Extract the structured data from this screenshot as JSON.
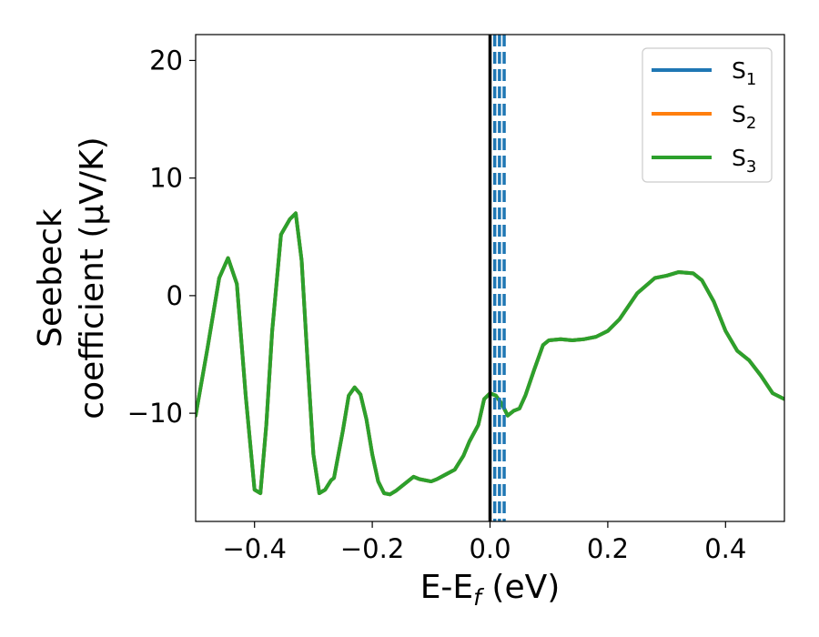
{
  "chart_data": {
    "type": "line",
    "xlabel": "E-E_f (eV)",
    "xlabel_parts": {
      "main": "E-E",
      "sub": "f",
      "suffix": " (eV)"
    },
    "ylabel_lines": [
      "Seebeck",
      "coefficient  (μV/K)"
    ],
    "xlim": [
      -0.5,
      0.5
    ],
    "ylim": [
      -19.2,
      22.2
    ],
    "xticks": [
      -0.4,
      -0.2,
      0.0,
      0.2,
      0.4
    ],
    "xtick_labels": [
      "−0.4",
      "−0.2",
      "0.0",
      "0.2",
      "0.4"
    ],
    "yticks": [
      -10,
      0,
      10,
      20
    ],
    "ytick_labels": [
      "−10",
      "0",
      "10",
      "20"
    ],
    "legend_position": "top-right",
    "grid": false,
    "vertical_lines": [
      {
        "x": 0.0,
        "color": "#000000",
        "style": "solid"
      },
      {
        "x": 0.008,
        "color": "#1f77b4",
        "style": "dashed"
      },
      {
        "x": 0.016,
        "color": "#1f77b4",
        "style": "dashed"
      },
      {
        "x": 0.024,
        "color": "#1f77b4",
        "style": "dashed"
      }
    ],
    "series": [
      {
        "name": "S1",
        "label_main": "S",
        "label_sub": "1",
        "color": "#1f77b4",
        "x": [
          -0.5,
          -0.48,
          -0.46,
          -0.445,
          -0.43,
          -0.415,
          -0.4,
          -0.39,
          -0.38,
          -0.37,
          -0.355,
          -0.34,
          -0.33,
          -0.32,
          -0.31,
          -0.3,
          -0.29,
          -0.28,
          -0.27,
          -0.265,
          -0.25,
          -0.24,
          -0.23,
          -0.22,
          -0.21,
          -0.2,
          -0.19,
          -0.18,
          -0.17,
          -0.16,
          -0.145,
          -0.13,
          -0.12,
          -0.1,
          -0.09,
          -0.075,
          -0.06,
          -0.045,
          -0.035,
          -0.02,
          -0.01,
          0.0,
          0.01,
          0.02,
          0.03,
          0.04,
          0.05,
          0.06,
          0.075,
          0.09,
          0.1,
          0.12,
          0.14,
          0.16,
          0.18,
          0.2,
          0.22,
          0.25,
          0.28,
          0.3,
          0.32,
          0.345,
          0.36,
          0.38,
          0.4,
          0.42,
          0.44,
          0.46,
          0.48,
          0.5
        ],
        "y": [
          -10.2,
          -4.5,
          1.5,
          3.2,
          1.0,
          -8.5,
          -16.5,
          -16.8,
          -11,
          -3,
          5.2,
          6.5,
          7.0,
          3.0,
          -5.5,
          -13.5,
          -16.8,
          -16.5,
          -15.7,
          -15.5,
          -11.5,
          -8.5,
          -7.8,
          -8.4,
          -10.5,
          -13.5,
          -15.8,
          -16.8,
          -16.9,
          -16.6,
          -16.0,
          -15.4,
          -15.6,
          -15.8,
          -15.6,
          -15.2,
          -14.8,
          -13.6,
          -12.4,
          -11.0,
          -8.8,
          -8.3,
          -8.5,
          -9.2,
          -10.2,
          -9.8,
          -9.6,
          -8.5,
          -6.3,
          -4.2,
          -3.8,
          -3.7,
          -3.8,
          -3.7,
          -3.5,
          -3.0,
          -2.0,
          0.2,
          1.5,
          1.7,
          2.0,
          1.9,
          1.3,
          -0.5,
          -3.0,
          -4.7,
          -5.5,
          -6.8,
          -8.3,
          -8.8
        ]
      },
      {
        "name": "S2",
        "label_main": "S",
        "label_sub": "2",
        "color": "#ff7f0e",
        "x": [
          -0.5,
          -0.48,
          -0.46,
          -0.445,
          -0.43,
          -0.415,
          -0.4,
          -0.39,
          -0.38,
          -0.37,
          -0.355,
          -0.34,
          -0.33,
          -0.32,
          -0.31,
          -0.3,
          -0.29,
          -0.28,
          -0.27,
          -0.265,
          -0.25,
          -0.24,
          -0.23,
          -0.22,
          -0.21,
          -0.2,
          -0.19,
          -0.18,
          -0.17,
          -0.16,
          -0.145,
          -0.13,
          -0.12,
          -0.1,
          -0.09,
          -0.075,
          -0.06,
          -0.045,
          -0.035,
          -0.02,
          -0.01,
          0.0,
          0.01,
          0.02,
          0.03,
          0.04,
          0.05,
          0.06,
          0.075,
          0.09,
          0.1,
          0.12,
          0.14,
          0.16,
          0.18,
          0.2,
          0.22,
          0.25,
          0.28,
          0.3,
          0.32,
          0.345,
          0.36,
          0.38,
          0.4,
          0.42,
          0.44,
          0.46,
          0.48,
          0.5
        ],
        "y": [
          -10.2,
          -4.5,
          1.5,
          3.2,
          1.0,
          -8.5,
          -16.5,
          -16.8,
          -11,
          -3,
          5.2,
          6.5,
          7.0,
          3.0,
          -5.5,
          -13.5,
          -16.8,
          -16.5,
          -15.7,
          -15.5,
          -11.5,
          -8.5,
          -7.8,
          -8.4,
          -10.5,
          -13.5,
          -15.8,
          -16.8,
          -16.9,
          -16.6,
          -16.0,
          -15.4,
          -15.6,
          -15.8,
          -15.6,
          -15.2,
          -14.8,
          -13.6,
          -12.4,
          -11.0,
          -8.8,
          -8.3,
          -8.5,
          -9.2,
          -10.2,
          -9.8,
          -9.6,
          -8.5,
          -6.3,
          -4.2,
          -3.8,
          -3.7,
          -3.8,
          -3.7,
          -3.5,
          -3.0,
          -2.0,
          0.2,
          1.5,
          1.7,
          2.0,
          1.9,
          1.3,
          -0.5,
          -3.0,
          -4.7,
          -5.5,
          -6.8,
          -8.3,
          -8.8
        ]
      },
      {
        "name": "S3",
        "label_main": "S",
        "label_sub": "3",
        "color": "#2ca02c",
        "x": [
          -0.5,
          -0.48,
          -0.46,
          -0.445,
          -0.43,
          -0.415,
          -0.4,
          -0.39,
          -0.38,
          -0.37,
          -0.355,
          -0.34,
          -0.33,
          -0.32,
          -0.31,
          -0.3,
          -0.29,
          -0.28,
          -0.27,
          -0.265,
          -0.25,
          -0.24,
          -0.23,
          -0.22,
          -0.21,
          -0.2,
          -0.19,
          -0.18,
          -0.17,
          -0.16,
          -0.145,
          -0.13,
          -0.12,
          -0.1,
          -0.09,
          -0.075,
          -0.06,
          -0.045,
          -0.035,
          -0.02,
          -0.01,
          0.0,
          0.01,
          0.02,
          0.03,
          0.04,
          0.05,
          0.06,
          0.075,
          0.09,
          0.1,
          0.12,
          0.14,
          0.16,
          0.18,
          0.2,
          0.22,
          0.25,
          0.28,
          0.3,
          0.32,
          0.345,
          0.36,
          0.38,
          0.4,
          0.42,
          0.44,
          0.46,
          0.48,
          0.5
        ],
        "y": [
          -10.2,
          -4.5,
          1.5,
          3.2,
          1.0,
          -8.5,
          -16.5,
          -16.8,
          -11,
          -3,
          5.2,
          6.5,
          7.0,
          3.0,
          -5.5,
          -13.5,
          -16.8,
          -16.5,
          -15.7,
          -15.5,
          -11.5,
          -8.5,
          -7.8,
          -8.4,
          -10.5,
          -13.5,
          -15.8,
          -16.8,
          -16.9,
          -16.6,
          -16.0,
          -15.4,
          -15.6,
          -15.8,
          -15.6,
          -15.2,
          -14.8,
          -13.6,
          -12.4,
          -11.0,
          -8.8,
          -8.3,
          -8.5,
          -9.2,
          -10.2,
          -9.8,
          -9.6,
          -8.5,
          -6.3,
          -4.2,
          -3.8,
          -3.7,
          -3.8,
          -3.7,
          -3.5,
          -3.0,
          -2.0,
          0.2,
          1.5,
          1.7,
          2.0,
          1.9,
          1.3,
          -0.5,
          -3.0,
          -4.7,
          -5.5,
          -6.8,
          -8.3,
          -8.8
        ]
      }
    ]
  }
}
